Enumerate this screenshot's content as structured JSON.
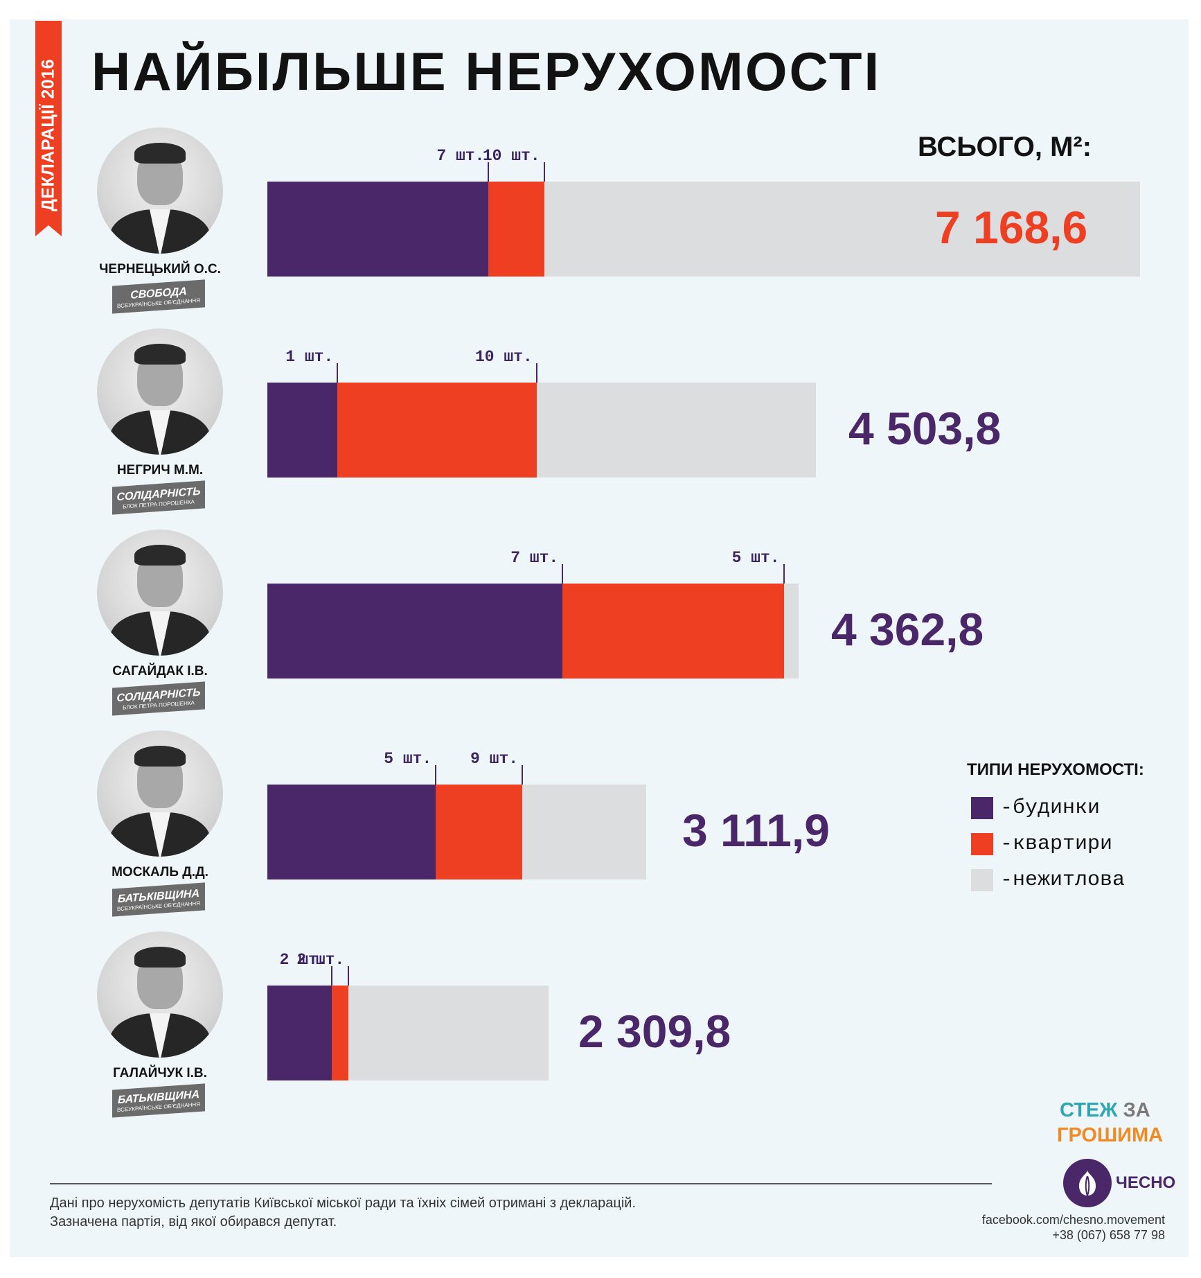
{
  "side_label": "ДЕКЛАРАЦІЇ 2016",
  "title": "НАЙБІЛЬШЕ НЕРУХОМОСТІ",
  "total_label": "ВСЬОГО, М²:",
  "colors": {
    "houses": "#4a2769",
    "apartments": "#ee3f23",
    "nonresidential": "#dcdddf",
    "accent": "#ee3f23"
  },
  "legend": {
    "title": "ТИПИ НЕРУХОМОСТІ:",
    "items": [
      "-будинки",
      "-квартири",
      "-нежитлова"
    ]
  },
  "chart_data": {
    "type": "bar",
    "orientation": "horizontal",
    "stacked": true,
    "units": "м²",
    "series_names": [
      "-будинки",
      "-квартири",
      "-нежитлова"
    ],
    "rows": [
      {
        "name": "ЧЕРНЕЦЬКИЙ О.С.",
        "party": "СВОБОДА",
        "party_sub": "ВСЕУКРАЇНСЬКЕ ОБ'ЄДНАННЯ",
        "total": 7168.6,
        "total_label": "7 168,6",
        "houses": 1817,
        "apartments": 457,
        "nonresidential": 4894.6,
        "houses_label": "7 шт.",
        "apartments_label": "10 шт."
      },
      {
        "name": "НЕГРИЧ М.М.",
        "party": "СОЛІДАРНІСТЬ",
        "party_sub": "БЛОК ПЕТРА ПОРОШЕНКА",
        "total": 4503.8,
        "total_label": "4 503,8",
        "houses": 576,
        "apartments": 1636,
        "nonresidential": 2291.8,
        "houses_label": "1 шт.",
        "apartments_label": "10 шт."
      },
      {
        "name": "САГАЙДАК І.В.",
        "party": "СОЛІДАРНІСТЬ",
        "party_sub": "БЛОК ПЕТРА ПОРОШЕНКА",
        "total": 4362.8,
        "total_label": "4 362,8",
        "houses": 2425,
        "apartments": 1817,
        "nonresidential": 120.8,
        "houses_label": "7 шт.",
        "apartments_label": "5 шт."
      },
      {
        "name": "МОСКАЛЬ Д.Д.",
        "party": "БАТЬКІВЩИНА",
        "party_sub": "ВСЕУКРАЇНСЬКЕ ОБ'ЄДНАННЯ",
        "total": 3111.9,
        "total_label": "3 111,9",
        "houses": 1384,
        "apartments": 710,
        "nonresidential": 1017.9,
        "houses_label": "5 шт.",
        "apartments_label": "9 шт."
      },
      {
        "name": "ГАЛАЙЧУК І.В.",
        "party": "БАТЬКІВЩИНА",
        "party_sub": "ВСЕУКРАЇНСЬКЕ ОБ'ЄДНАННЯ",
        "total": 2309.8,
        "total_label": "2 309,8",
        "houses": 527,
        "apartments": 140,
        "nonresidential": 1642.8,
        "houses_label": "2 шт.",
        "apartments_label": "2 шт."
      }
    ]
  },
  "footer": {
    "note_line1": "Дані про нерухомість депутатів Київської міської ради та їхніх сімей отримані з декларацій.",
    "note_line2": "Зазначена партія, від якої обирався депутат.",
    "logo_stezh": "СТЕЖ",
    "logo_za": "ЗА",
    "logo_groshima": "ГРОШИМА",
    "chesno": "ЧЕСНО",
    "facebook": "facebook.com/chesno.movement",
    "phone": "+38 (067) 658 77 98"
  }
}
